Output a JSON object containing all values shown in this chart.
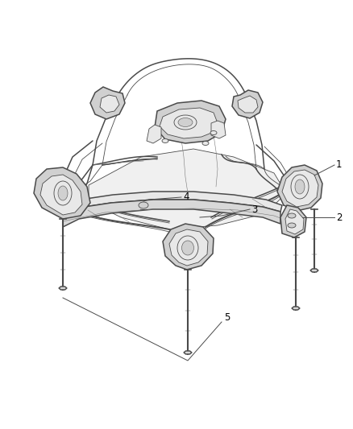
{
  "background_color": "#ffffff",
  "figure_width": 4.38,
  "figure_height": 5.33,
  "dpi": 100,
  "line_color": "#4a4a4a",
  "light_gray": "#aaaaaa",
  "medium_gray": "#777777",
  "fill_light": "#e8e8e8",
  "fill_medium": "#d0d0d0",
  "fill_dark": "#b8b8b8",
  "label_fontsize": 8.5,
  "label_color": "#000000",
  "lw_main": 1.1,
  "lw_detail": 0.6,
  "lw_thin": 0.4
}
